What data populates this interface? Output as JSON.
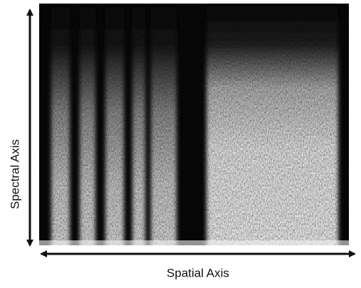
{
  "labels": {
    "vertical_axis": "Spectral Axis",
    "horizontal_axis": "Spatial Axis"
  }
}
